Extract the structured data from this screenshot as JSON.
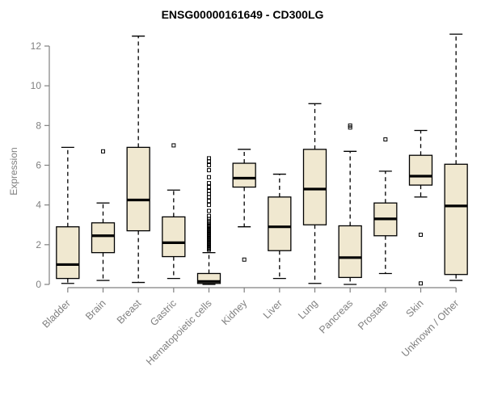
{
  "chart_data": {
    "type": "boxplot",
    "title": "ENSG00000161649 - CD300LG",
    "ylabel": "Expression",
    "xlabel": "",
    "ylim": [
      0,
      12
    ],
    "yticks": [
      0,
      2,
      4,
      6,
      8,
      10,
      12
    ],
    "grid": false,
    "legend": "none",
    "categories": [
      "Bladder",
      "Brain",
      "Breast",
      "Gastric",
      "Hematopoietic cells",
      "Kidney",
      "Liver",
      "Lung",
      "Pancreas",
      "Prostate",
      "Skin",
      "Unknown / Other"
    ],
    "series": [
      {
        "category": "Bladder",
        "low": 0.05,
        "q1": 0.3,
        "median": 1.0,
        "q3": 2.9,
        "high": 6.9,
        "outliers": []
      },
      {
        "category": "Brain",
        "low": 0.2,
        "q1": 1.6,
        "median": 2.45,
        "q3": 3.1,
        "high": 4.1,
        "outliers": [
          6.7
        ]
      },
      {
        "category": "Breast",
        "low": 0.1,
        "q1": 2.7,
        "median": 4.25,
        "q3": 6.9,
        "high": 12.5,
        "outliers": []
      },
      {
        "category": "Gastric",
        "low": 0.3,
        "q1": 1.4,
        "median": 2.1,
        "q3": 3.4,
        "high": 4.75,
        "outliers": [
          7.0
        ]
      },
      {
        "category": "Hematopoietic cells",
        "low": 0.0,
        "q1": 0.05,
        "median": 0.15,
        "q3": 0.55,
        "high": 1.6,
        "outliers": [
          1.75,
          1.8,
          1.85,
          1.9,
          1.95,
          2.0,
          2.05,
          2.1,
          2.15,
          2.2,
          2.25,
          2.3,
          2.35,
          2.4,
          2.45,
          2.5,
          2.55,
          2.6,
          2.65,
          2.7,
          2.75,
          2.8,
          2.85,
          2.9,
          2.95,
          3.0,
          3.1,
          3.2,
          3.3,
          3.45,
          3.7,
          4.0,
          4.2,
          4.4,
          4.55,
          4.7,
          4.9,
          5.1,
          5.4,
          5.75,
          6.0,
          6.2,
          6.35
        ]
      },
      {
        "category": "Kidney",
        "low": 2.9,
        "q1": 4.9,
        "median": 5.35,
        "q3": 6.1,
        "high": 6.8,
        "outliers": [
          1.25
        ]
      },
      {
        "category": "Liver",
        "low": 0.3,
        "q1": 1.7,
        "median": 2.9,
        "q3": 4.4,
        "high": 5.55,
        "outliers": []
      },
      {
        "category": "Lung",
        "low": 0.05,
        "q1": 3.0,
        "median": 4.8,
        "q3": 6.8,
        "high": 9.1,
        "outliers": []
      },
      {
        "category": "Pancreas",
        "low": 0.0,
        "q1": 0.35,
        "median": 1.35,
        "q3": 2.95,
        "high": 6.7,
        "outliers": [
          7.9,
          8.0
        ]
      },
      {
        "category": "Prostate",
        "low": 0.55,
        "q1": 2.45,
        "median": 3.3,
        "q3": 4.1,
        "high": 5.7,
        "outliers": [
          7.3
        ]
      },
      {
        "category": "Skin",
        "low": 4.4,
        "q1": 5.0,
        "median": 5.45,
        "q3": 6.5,
        "high": 7.75,
        "outliers": [
          2.5,
          0.05
        ]
      },
      {
        "category": "Unknown / Other",
        "low": 0.2,
        "q1": 0.5,
        "median": 3.95,
        "q3": 6.05,
        "high": 12.6,
        "outliers": []
      }
    ],
    "colors": {
      "box_fill": "#F0E8D0",
      "box_stroke": "#000000",
      "median": "#000000",
      "whisker": "#000000",
      "axis": "#808080",
      "tick_text": "#808080",
      "title": "#000000",
      "background": "#ffffff"
    }
  }
}
